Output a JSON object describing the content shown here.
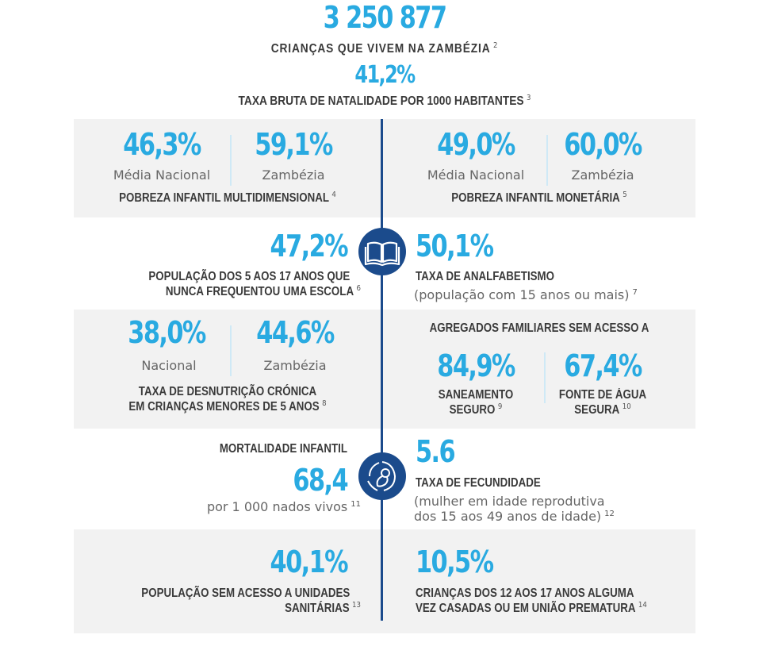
{
  "header": {
    "children_count": "3 250 877",
    "children_label": "CRIANÇAS QUE VIVEM NA ZAMBÉZIA",
    "children_ref": "2",
    "birth_rate": "41,2%",
    "birth_rate_label": "TAXA BRUTA DE NATALIDADE POR 1000 HABITANTES",
    "birth_rate_ref": "3"
  },
  "poverty_multi": {
    "national_value": "46,3%",
    "national_label": "Média Nacional",
    "zambezia_value": "59,1%",
    "zambezia_label": "Zambézia",
    "title": "POBREZA INFANTIL MULTIDIMENSIONAL",
    "ref": "4"
  },
  "poverty_monetary": {
    "national_value": "49,0%",
    "national_label": "Média Nacional",
    "zambezia_value": "60,0%",
    "zambezia_label": "Zambézia",
    "title": "POBREZA INFANTIL MONETÁRIA",
    "ref": "5"
  },
  "school": {
    "value": "47,2%",
    "line1": "POPULAÇÃO DOS 5 AOS 17 ANOS QUE",
    "line2": "NUNCA FREQUENTOU UMA ESCOLA",
    "ref": "6"
  },
  "illiteracy": {
    "value": "50,1%",
    "title": "TAXA DE ANALFABETISMO",
    "note": "(população com 15 anos ou mais)",
    "ref": "7"
  },
  "malnutrition": {
    "national_value": "38,0%",
    "national_label": "Nacional",
    "zambezia_value": "44,6%",
    "zambezia_label": "Zambézia",
    "line1": "TAXA DE DESNUTRIÇÃO CRÓNICA",
    "line2": "EM CRIANÇAS MENORES DE 5 ANOS",
    "ref": "8"
  },
  "households": {
    "title": "AGREGADOS FAMILIARES SEM ACESSO A",
    "sanitation_value": "84,9%",
    "sanitation_line1": "SANEAMENTO",
    "sanitation_line2": "SEGURO",
    "sanitation_ref": "9",
    "water_value": "67,4%",
    "water_line1": "FONTE DE ÁGUA",
    "water_line2": "SEGURA",
    "water_ref": "10"
  },
  "mortality": {
    "title": "MORTALIDADE INFANTIL",
    "value": "68,4",
    "note": "por 1 000 nados vivos",
    "ref": "11"
  },
  "fertility": {
    "value": "5.6",
    "title": "TAXA DE FECUNDIDADE",
    "note1": "(mulher em idade reprodutiva",
    "note2": "dos 15 aos 49 anos de idade)",
    "ref": "12"
  },
  "health_units": {
    "value": "40,1%",
    "line1": "POPULAÇÃO SEM ACESSO A UNIDADES",
    "line2": "SANITÁRIAS",
    "ref": "13"
  },
  "married": {
    "value": "10,5%",
    "line1": "CRIANÇAS DOS 12 AOS 17 ANOS ALGUMA",
    "line2": "VEZ CASADAS OU EM UNIÃO PREMATURA",
    "ref": "14"
  },
  "icons": {
    "book": "book-icon",
    "baby": "baby-in-womb-icon"
  },
  "colors": {
    "accent": "#29aae1",
    "navy": "#1b4b8c",
    "band": "#f2f2f2",
    "text": "#3a3a3a"
  }
}
